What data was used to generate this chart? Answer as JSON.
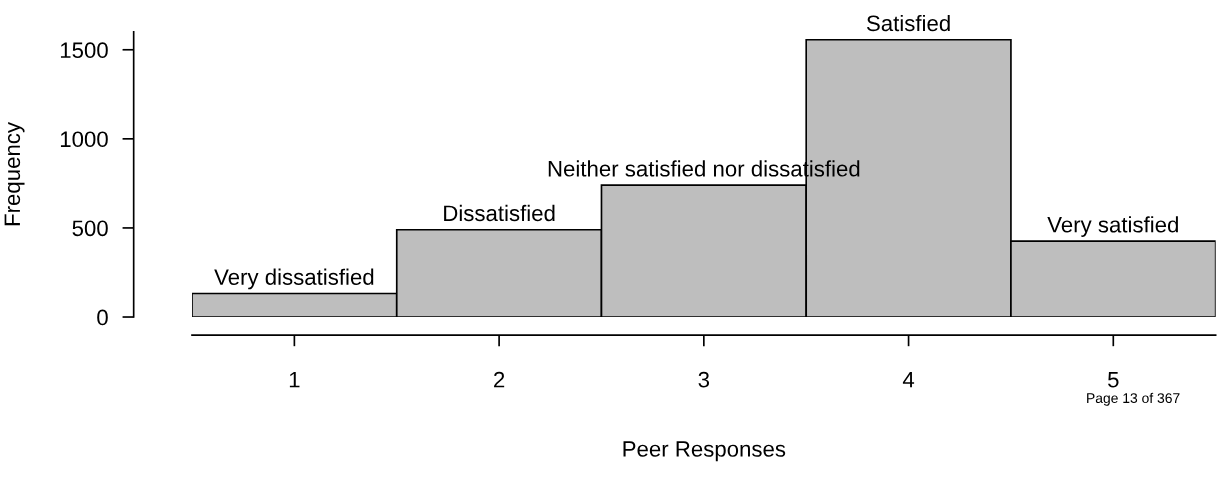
{
  "chart_data": {
    "type": "histogram",
    "xlabel": "Peer Responses",
    "ylabel": "Frequency",
    "bins": [
      0.5,
      1.5,
      2.5,
      3.5,
      4.5,
      5.5
    ],
    "values": [
      132,
      490,
      740,
      1556,
      426
    ],
    "color": "#bebebe",
    "xlim": [
      0.5,
      5.5
    ],
    "ylim": [
      0,
      1600
    ],
    "xticks": [
      1,
      2,
      3,
      4,
      5
    ],
    "yticks": [
      0,
      500,
      1000,
      1500
    ],
    "grid": false,
    "legend": false,
    "annotations": [
      {
        "text": "Very dissatisfied",
        "x": 1,
        "y": 132
      },
      {
        "text": "Dissatisfied",
        "x": 2,
        "y": 490
      },
      {
        "text": "Neither satisfied nor dissatisfied",
        "x": 3,
        "y": 740
      },
      {
        "text": "Satisfied",
        "x": 4,
        "y": 1556
      },
      {
        "text": "Very satisfied",
        "x": 5,
        "y": 426
      },
      "Page 13 of 367"
    ]
  }
}
